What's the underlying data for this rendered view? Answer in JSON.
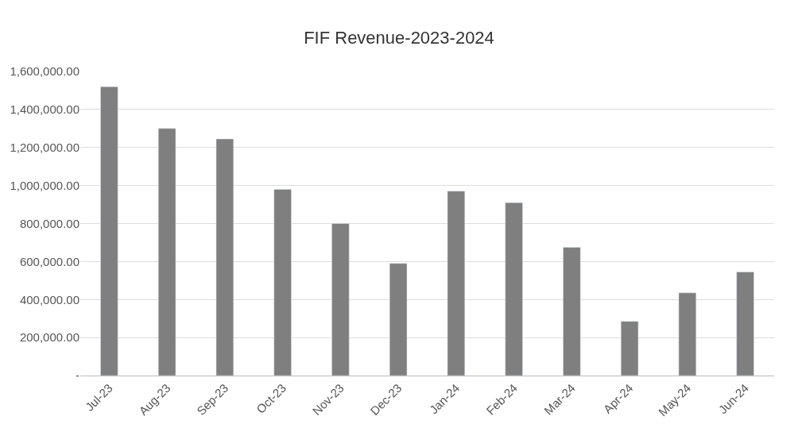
{
  "chart_data": {
    "type": "bar",
    "title": "FIF Revenue-2023-2024",
    "categories": [
      "Jul-23",
      "Aug-23",
      "Sep-23",
      "Oct-23",
      "Nov-23",
      "Dec-23",
      "Jan-24",
      "Feb-24",
      "Mar-24",
      "Apr-24",
      "May-24",
      "Jun-24"
    ],
    "values": [
      1520000,
      1300000,
      1245000,
      980000,
      800000,
      590000,
      970000,
      910000,
      675000,
      285000,
      435000,
      545000
    ],
    "color": "#7f7f7f",
    "ylim": [
      0,
      1600000
    ],
    "yticks": [
      {
        "value": 0,
        "label": "-"
      },
      {
        "value": 200000,
        "label": "200,000.00"
      },
      {
        "value": 400000,
        "label": "400,000.00"
      },
      {
        "value": 600000,
        "label": "600,000.00"
      },
      {
        "value": 800000,
        "label": "800,000.00"
      },
      {
        "value": 1000000,
        "label": "1,000,000.00"
      },
      {
        "value": 1200000,
        "label": "1,200,000.00"
      },
      {
        "value": 1400000,
        "label": "1,400,000.00"
      },
      {
        "value": 1600000,
        "label": "1,600,000.00"
      }
    ],
    "grid": "y"
  }
}
